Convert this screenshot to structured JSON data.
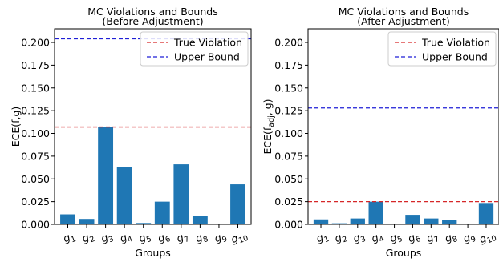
{
  "chart_data": [
    {
      "type": "bar",
      "title": [
        "MC Violations and Bounds",
        "(Before Adjustment)"
      ],
      "xlabel": "Groups",
      "ylabel": "ECE(f,g)",
      "categories": [
        "1",
        "2",
        "3",
        "4",
        "5",
        "6",
        "7",
        "8",
        "9",
        "10"
      ],
      "values": [
        0.011,
        0.006,
        0.107,
        0.063,
        0.0015,
        0.025,
        0.066,
        0.0095,
        0.0,
        0.044
      ],
      "ylim": [
        0,
        0.215
      ],
      "yticks": [
        "0.000",
        "0.025",
        "0.050",
        "0.075",
        "0.100",
        "0.125",
        "0.150",
        "0.175",
        "0.200"
      ],
      "bar_color": "#1f77b4",
      "lines": [
        {
          "label": "True Violation",
          "value": 0.107,
          "color": "#d62728",
          "style": "dashed"
        },
        {
          "label": "Upper Bound",
          "value": 0.204,
          "color": "#1f1fd6",
          "style": "dashed"
        }
      ],
      "legend": "top-right"
    },
    {
      "type": "bar",
      "title": [
        "MC Violations and Bounds",
        "(After Adjustment)"
      ],
      "xlabel": "Groups",
      "ylabel": "ECE(f",
      "ylabel_sub": "adj",
      "ylabel_end": ", g)",
      "categories": [
        "1",
        "2",
        "3",
        "4",
        "5",
        "6",
        "7",
        "8",
        "9",
        "10"
      ],
      "values": [
        0.0055,
        0.0012,
        0.0065,
        0.025,
        0.0,
        0.0105,
        0.0065,
        0.005,
        0.0,
        0.0235
      ],
      "ylim": [
        0,
        0.215
      ],
      "yticks": [
        "0.000",
        "0.025",
        "0.050",
        "0.075",
        "0.100",
        "0.125",
        "0.150",
        "0.175",
        "0.200"
      ],
      "bar_color": "#1f77b4",
      "lines": [
        {
          "label": "True Violation",
          "value": 0.025,
          "color": "#d62728",
          "style": "dashed"
        },
        {
          "label": "Upper Bound",
          "value": 0.128,
          "color": "#1f1fd6",
          "style": "dashed"
        }
      ],
      "legend": "top-right"
    }
  ]
}
